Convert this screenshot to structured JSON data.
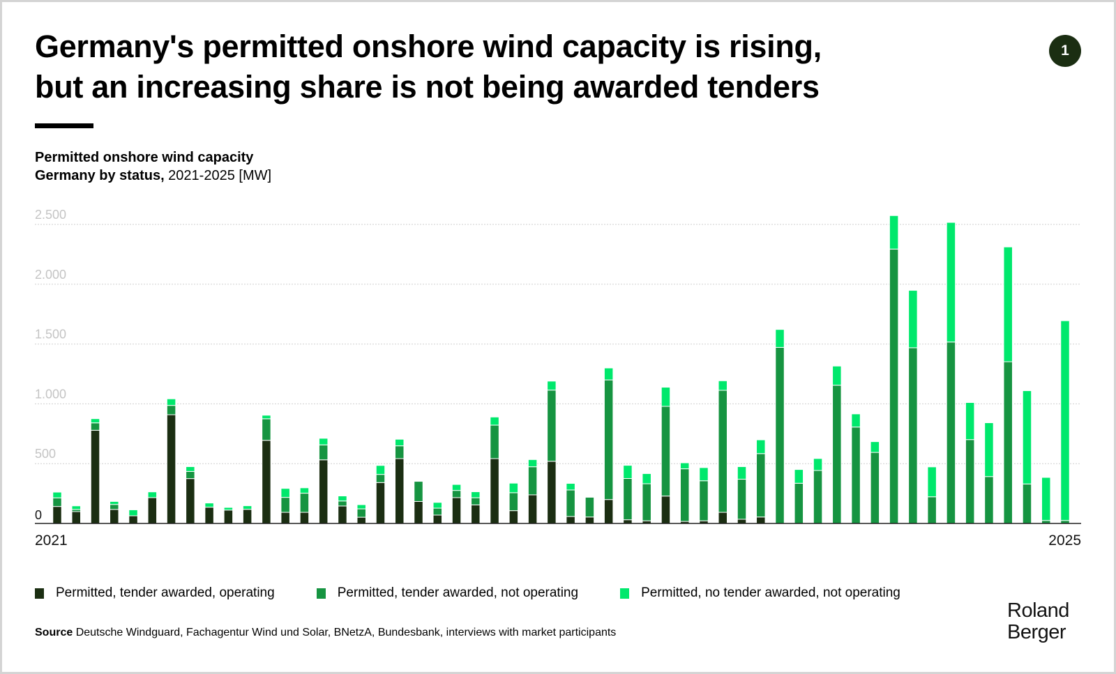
{
  "header": {
    "title_line1": "Germany's permitted onshore wind capacity is rising,",
    "title_line2": "but an increasing share is not being awarded tenders",
    "badge": "1"
  },
  "subtitle": {
    "line1": "Permitted onshore wind capacity",
    "line2_bold": "Germany by status,",
    "line2_rest": " 2021-2025 [MW]"
  },
  "colors": {
    "operating": "#1b2e12",
    "awarded_not_operating": "#169441",
    "no_tender": "#00e86c"
  },
  "legend": [
    {
      "label": "Permitted, tender awarded, operating",
      "color": "#1b2e12"
    },
    {
      "label": "Permitted, tender awarded, not operating",
      "color": "#169441"
    },
    {
      "label": "Permitted, no tender awarded, not operating",
      "color": "#00e86c"
    }
  ],
  "source": {
    "label": "Source",
    "text": " Deutsche Windguard, Fachagentur Wind und Solar, BNetzA, Bundesbank, interviews with market participants"
  },
  "logo": {
    "line1": "Roland",
    "line2": "Berger"
  },
  "chart_data": {
    "type": "bar",
    "stacked": true,
    "title": "Permitted onshore wind capacity Germany by status, 2021-2025 [MW]",
    "xlabel": "",
    "ylabel": "MW",
    "ylim": [
      0,
      2500
    ],
    "yticks": [
      0,
      500,
      1000,
      1500,
      2000,
      2500
    ],
    "ytick_labels": [
      "0",
      "500",
      "1.000",
      "1.500",
      "2.000",
      "2.500"
    ],
    "x_start_label": "2021",
    "x_end_label": "2025",
    "grid": true,
    "legend_position": "bottom",
    "series": [
      {
        "name": "Permitted, tender awarded, operating",
        "values": [
          142,
          99,
          779,
          117,
          64,
          216,
          909,
          375,
          136,
          112,
          118,
          695,
          93,
          93,
          532,
          146,
          52,
          342,
          542,
          184,
          70,
          216,
          155,
          542,
          107,
          239,
          520,
          58,
          54,
          200,
          31,
          22,
          229,
          17,
          22,
          93,
          35,
          54,
          0,
          0,
          0,
          0,
          0,
          0,
          0,
          0,
          0,
          0,
          0,
          0,
          0,
          0,
          0,
          0
        ]
      },
      {
        "name": "Permitted, tender awarded, not operating",
        "values": [
          72,
          18,
          62,
          42,
          0,
          0,
          78,
          60,
          0,
          0,
          0,
          180,
          125,
          160,
          125,
          42,
          70,
          68,
          107,
          168,
          58,
          60,
          60,
          280,
          150,
          235,
          595,
          222,
          165,
          1000,
          345,
          310,
          750,
          440,
          335,
          1020,
          335,
          530,
          1472,
          336,
          443,
          1156,
          806,
          594,
          2294,
          1469,
          223,
          1517,
          701,
          392,
          1352,
          330,
          25,
          25
        ]
      },
      {
        "name": "Permitted, no tender awarded, not operating",
        "values": [
          48,
          30,
          35,
          25,
          50,
          48,
          55,
          40,
          35,
          22,
          30,
          30,
          75,
          45,
          55,
          42,
          35,
          75,
          55,
          0,
          48,
          50,
          50,
          68,
          80,
          60,
          75,
          55,
          0,
          100,
          110,
          85,
          160,
          50,
          110,
          80,
          105,
          115,
          150,
          115,
          100,
          160,
          110,
          90,
          280,
          480,
          250,
          1000,
          310,
          450,
          960,
          780,
          360,
          1670
        ]
      }
    ]
  }
}
